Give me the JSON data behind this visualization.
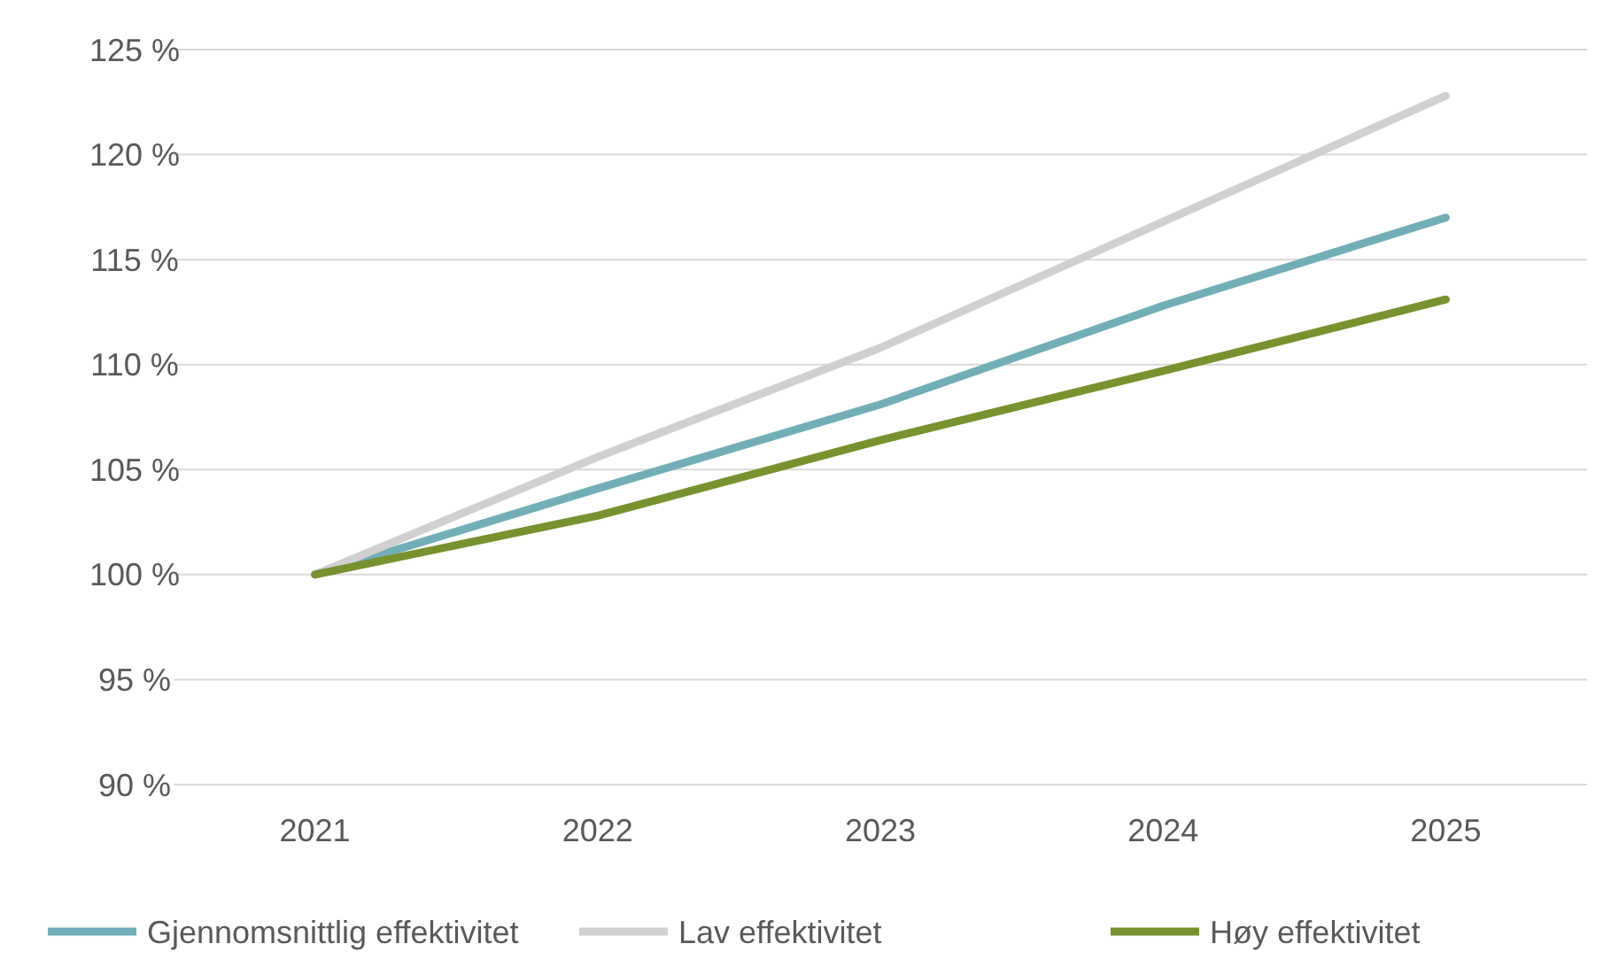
{
  "chart_data": {
    "type": "line",
    "categories": [
      "2021",
      "2022",
      "2023",
      "2024",
      "2025"
    ],
    "series": [
      {
        "name": "Gjennomsnittlig effektivitet",
        "color": "#72aeb8",
        "values": [
          100,
          104.1,
          108.1,
          112.8,
          117.0
        ]
      },
      {
        "name": "Lav effektivitet",
        "color": "#d0d0d0",
        "values": [
          100,
          105.6,
          110.8,
          116.8,
          122.8
        ]
      },
      {
        "name": "Høy effektivitet",
        "color": "#77922e",
        "values": [
          100,
          102.8,
          106.4,
          109.7,
          113.1
        ]
      }
    ],
    "ylim": [
      90,
      125
    ],
    "yticks": [
      {
        "value": 90,
        "label": "90 %"
      },
      {
        "value": 95,
        "label": "95 %"
      },
      {
        "value": 100,
        "label": "100 %"
      },
      {
        "value": 105,
        "label": "105 %"
      },
      {
        "value": 110,
        "label": "110 %"
      },
      {
        "value": 115,
        "label": "115 %"
      },
      {
        "value": 120,
        "label": "120 %"
      },
      {
        "value": 125,
        "label": "125 %"
      }
    ],
    "grid": "y",
    "legend": "bottom",
    "marker": "none",
    "line_style": "solid"
  }
}
